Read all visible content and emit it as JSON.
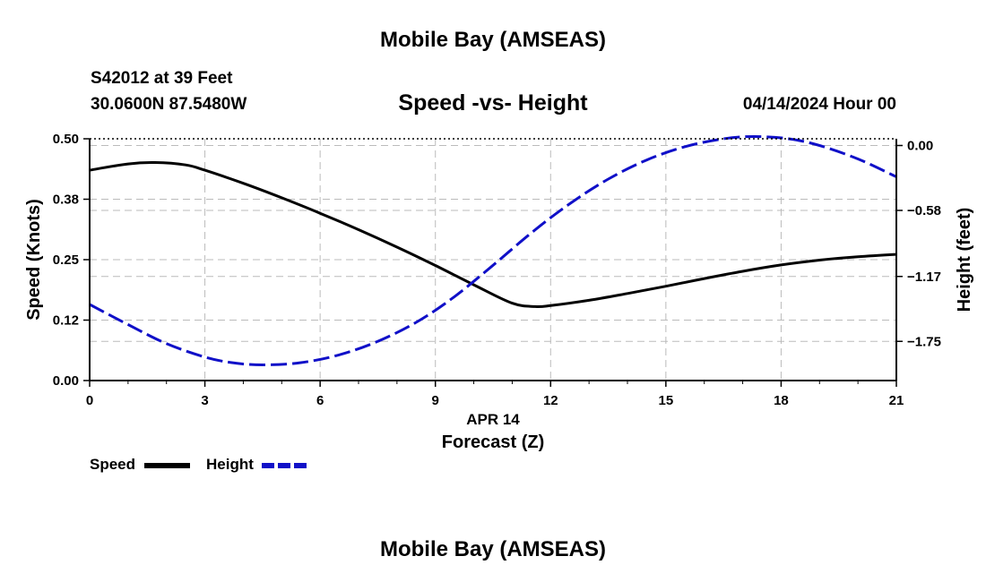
{
  "header": {
    "title_top": "Mobile Bay (AMSEAS)",
    "station": "S42012 at 39 Feet",
    "coords": "30.0600N  87.5480W",
    "subtitle": "Speed -vs- Height",
    "datetime": "04/14/2024 Hour 00",
    "title_bottom": "Mobile Bay (AMSEAS)"
  },
  "colors": {
    "speed": "#000000",
    "height": "#1010c8",
    "grid": "#bbbbbb"
  },
  "chart_data": {
    "type": "line",
    "title": "Speed -vs- Height",
    "xlabel": "Forecast (Z)",
    "xsublabel": "APR 14",
    "ylabel": "Speed (Knots)",
    "y2label": "Height (feet)",
    "xlim": [
      0,
      21
    ],
    "ylim": [
      0,
      0.5
    ],
    "y2lim": [
      -2.1,
      0.06
    ],
    "x_ticks": [
      0,
      3,
      6,
      9,
      12,
      15,
      18,
      21
    ],
    "y_ticks": [
      {
        "value": 0.0,
        "label": "0.00"
      },
      {
        "value": 0.125,
        "label": "0.12"
      },
      {
        "value": 0.25,
        "label": "0.25"
      },
      {
        "value": 0.375,
        "label": "0.38"
      },
      {
        "value": 0.5,
        "label": "0.50"
      }
    ],
    "y2_ticks": [
      {
        "value": 0.0,
        "label": "0.00"
      },
      {
        "value": -0.58,
        "label": "−0.58"
      },
      {
        "value": -1.17,
        "label": "−1.17"
      },
      {
        "value": -1.75,
        "label": "−1.75"
      }
    ],
    "grid": true,
    "legend": [
      {
        "name": "Speed",
        "style": "solid"
      },
      {
        "name": "Height",
        "style": "dashed"
      }
    ],
    "series": [
      {
        "name": "Speed",
        "axis": "left",
        "style": "solid",
        "x": [
          0,
          1,
          1.7,
          2.5,
          3,
          4,
          5,
          6,
          7,
          8,
          9,
          10,
          11,
          11.6,
          12,
          13,
          14,
          15,
          16,
          17,
          18,
          19,
          20,
          21
        ],
        "values": [
          0.435,
          0.448,
          0.451,
          0.446,
          0.435,
          0.408,
          0.378,
          0.346,
          0.312,
          0.276,
          0.238,
          0.198,
          0.16,
          0.153,
          0.155,
          0.166,
          0.18,
          0.195,
          0.211,
          0.226,
          0.239,
          0.249,
          0.256,
          0.261
        ]
      },
      {
        "name": "Height",
        "axis": "right",
        "style": "dashed",
        "x": [
          0,
          1,
          2,
          3,
          3.7,
          4.5,
          5.5,
          6.5,
          7.5,
          8.5,
          9.5,
          10.5,
          11.5,
          12.5,
          13.5,
          14.5,
          15.5,
          16.5,
          17.3,
          18.2,
          19,
          20,
          21
        ],
        "values": [
          -1.42,
          -1.6,
          -1.77,
          -1.89,
          -1.94,
          -1.96,
          -1.94,
          -1.87,
          -1.75,
          -1.58,
          -1.35,
          -1.07,
          -0.78,
          -0.52,
          -0.3,
          -0.13,
          -0.01,
          0.06,
          0.08,
          0.06,
          0.0,
          -0.12,
          -0.28
        ]
      }
    ]
  },
  "legend_labels": {
    "speed": "Speed",
    "height": "Height"
  }
}
